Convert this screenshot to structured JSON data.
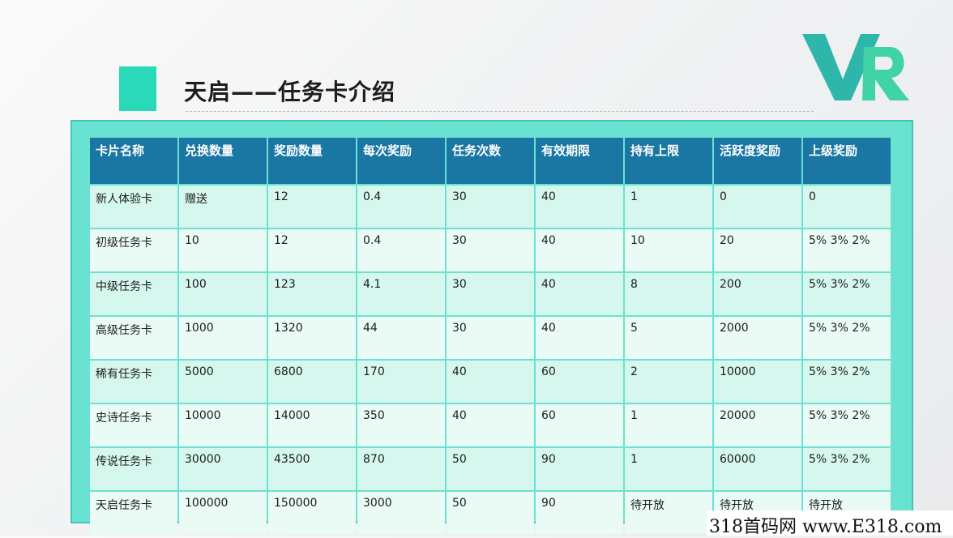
{
  "slide": {
    "title": "天启——任务卡介绍",
    "logo_text": "VR",
    "logo_colors": {
      "v": "#2fb6aa",
      "r": "#3fd3a6"
    },
    "accent_color": "#2ad9b8",
    "header_color": "#1a77a3",
    "panel_color": "#6ae2d2"
  },
  "table": {
    "columns": [
      "卡片名称",
      "兑换数量",
      "奖励数量",
      "每次奖励",
      "任务次数",
      "有效期限",
      "持有上限",
      "活跃度奖励",
      "上级奖励"
    ],
    "rows": [
      [
        "新人体验卡",
        "赠送",
        "12",
        "0.4",
        "30",
        "40",
        "1",
        "0",
        "0"
      ],
      [
        "初级任务卡",
        "10",
        "12",
        "0.4",
        "30",
        "40",
        "10",
        "20",
        "5% 3% 2%"
      ],
      [
        "中级任务卡",
        "100",
        "123",
        "4.1",
        "30",
        "40",
        "8",
        "200",
        "5% 3% 2%"
      ],
      [
        "高级任务卡",
        "1000",
        "1320",
        "44",
        "30",
        "40",
        "5",
        "2000",
        "5% 3% 2%"
      ],
      [
        "稀有任务卡",
        "5000",
        "6800",
        "170",
        "40",
        "60",
        "2",
        "10000",
        "5% 3% 2%"
      ],
      [
        "史诗任务卡",
        "10000",
        "14000",
        "350",
        "40",
        "60",
        "1",
        "20000",
        "5% 3% 2%"
      ],
      [
        "传说任务卡",
        "30000",
        "43500",
        "870",
        "50",
        "90",
        "1",
        "60000",
        "5% 3% 2%"
      ],
      [
        "天启任务卡",
        "100000",
        "150000",
        "3000",
        "50",
        "90",
        "待开放",
        "待开放",
        "待开放"
      ]
    ]
  },
  "watermark": {
    "text": "318首码网 www.E318.com"
  }
}
